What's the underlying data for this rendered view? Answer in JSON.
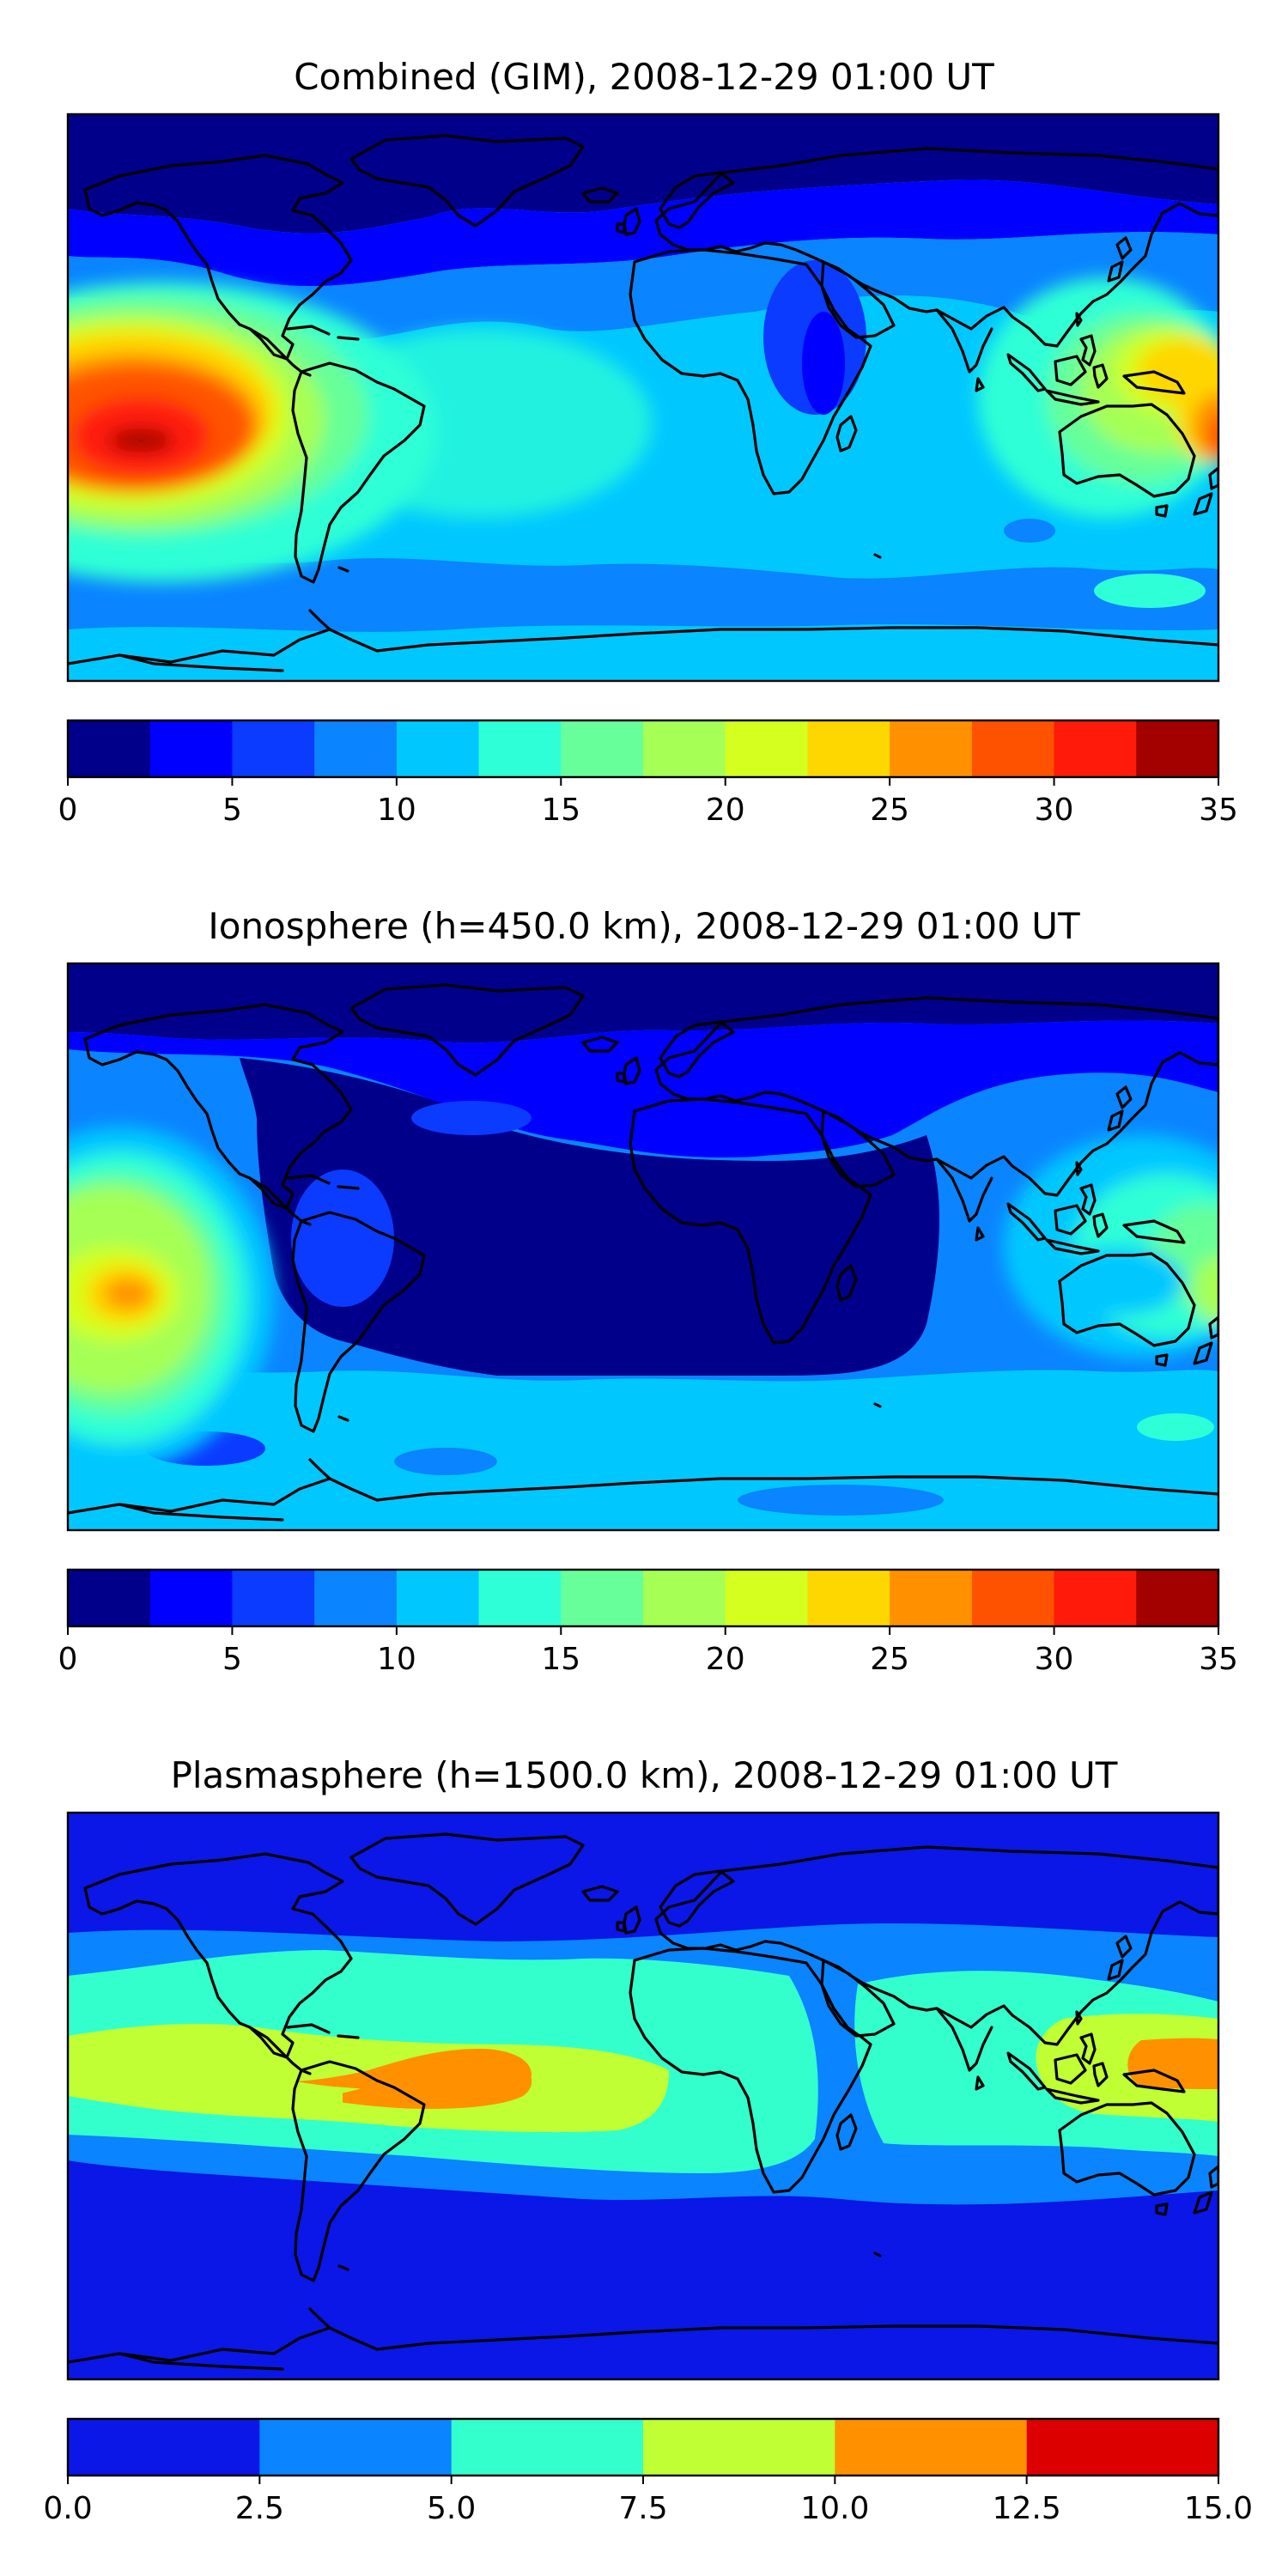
{
  "panels": [
    {
      "id": "combined",
      "title": "Combined (GIM), 2008-12-29 01:00 UT",
      "colorbar": {
        "min": 0,
        "max": 35,
        "step": 2.5,
        "ticks": [
          "0",
          "5",
          "10",
          "15",
          "20",
          "25",
          "30",
          "35"
        ],
        "colors": [
          "#00008b",
          "#0000ff",
          "#0a3bff",
          "#0a84ff",
          "#00c8ff",
          "#2effd6",
          "#66ff99",
          "#a6ff55",
          "#d4ff1f",
          "#ffd700",
          "#ff9100",
          "#ff5200",
          "#ff1a0a",
          "#a30000"
        ]
      }
    },
    {
      "id": "ionosphere",
      "title": "Ionosphere  (h=450.0 km), 2008-12-29 01:00 UT",
      "colorbar": {
        "min": 0,
        "max": 35,
        "step": 2.5,
        "ticks": [
          "0",
          "5",
          "10",
          "15",
          "20",
          "25",
          "30",
          "35"
        ],
        "colors": [
          "#00008b",
          "#0000ff",
          "#0a3bff",
          "#0a84ff",
          "#00c8ff",
          "#2effd6",
          "#66ff99",
          "#a6ff55",
          "#d4ff1f",
          "#ffd700",
          "#ff9100",
          "#ff5200",
          "#ff1a0a",
          "#a30000"
        ]
      }
    },
    {
      "id": "plasmasphere",
      "title": "Plasmasphere (h=1500.0 km), 2008-12-29 01:00 UT",
      "colorbar": {
        "min": 0,
        "max": 15,
        "step": 2.5,
        "ticks": [
          "0.0",
          "2.5",
          "5.0",
          "7.5",
          "10.0",
          "12.5",
          "15.0"
        ],
        "colors": [
          "#0a17e6",
          "#0a84ff",
          "#33ffcc",
          "#bfff33",
          "#ff9100",
          "#dd0000"
        ]
      }
    }
  ]
}
